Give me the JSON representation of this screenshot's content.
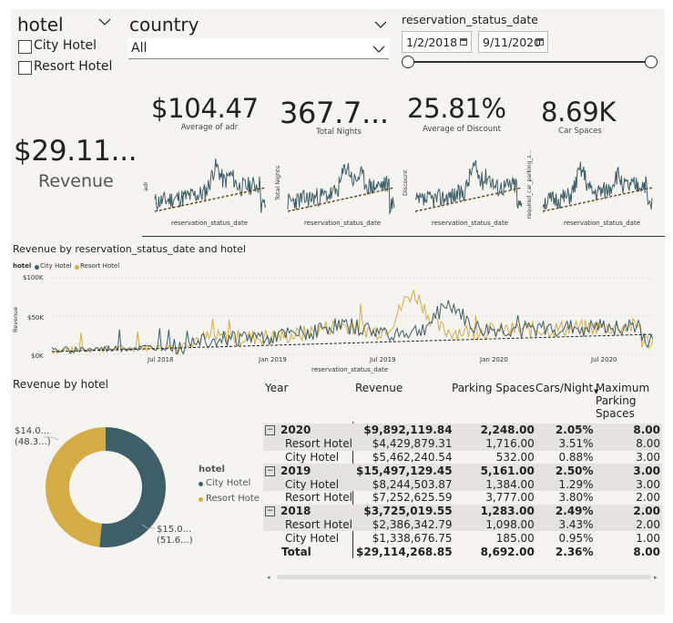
{
  "slicers": {
    "hotel": {
      "title": "hotel",
      "options": [
        {
          "label": "City Hotel",
          "checked": false
        },
        {
          "label": "Resort Hotel",
          "checked": false
        }
      ]
    },
    "country": {
      "title": "country",
      "value": "All"
    },
    "date": {
      "title": "reservation_status_date",
      "start": "1/2/2018",
      "end": "9/11/2020"
    }
  },
  "kpis": {
    "revenue": {
      "value": "$29.11...",
      "label": "Revenue"
    },
    "adr": {
      "value": "$104.47",
      "label": "Average of adr",
      "ylabel": "adr",
      "xlabel": "reservation_status_date"
    },
    "nights": {
      "value": "367.7...",
      "label": "Total Nights",
      "ylabel": "Total Nights",
      "xlabel": "reservation_status_date"
    },
    "discount": {
      "value": "25.81%",
      "label": "Average of Discount",
      "ylabel": "Discount",
      "xlabel": "reservation_status_date"
    },
    "parking": {
      "value": "8.69K",
      "label": "Car Spaces",
      "ylabel": "required_car_parking_s...",
      "xlabel": "reservation_status_date"
    }
  },
  "line_chart": {
    "title": "Revenue by reservation_status_date and hotel",
    "legend_title": "hotel",
    "series": [
      {
        "name": "City Hotel",
        "color": "#3f5f68"
      },
      {
        "name": "Resort Hotel",
        "color": "#d4ad47"
      }
    ],
    "yticks": [
      "$100K",
      "$50K",
      "$0K"
    ],
    "xticks": [
      "Jul 2018",
      "Jan 2019",
      "Jul 2019",
      "Jan 2020",
      "Jul 2020"
    ],
    "ylabel": "Revenue",
    "xlabel": "reservation_status_date"
  },
  "donut": {
    "title": "Revenue by hotel",
    "legend_title": "hotel",
    "slices": [
      {
        "name": "City Hotel",
        "value": 15045209.02,
        "label": "$15.0...",
        "pct": "(51.6...)",
        "color": "#3f5f68"
      },
      {
        "name": "Resort Hotel",
        "value": 14069059.83,
        "label": "$14.0...",
        "pct": "(48.3...)",
        "color": "#d4ad47"
      }
    ],
    "legend_labels": [
      "City Hotel",
      "Resort Hote"
    ]
  },
  "matrix": {
    "headers": [
      "Year",
      "Revenue",
      "Parking Spaces",
      "Cars/Night",
      "Maximum Parking Spaces"
    ],
    "rows": [
      {
        "label": "2020",
        "level": 0,
        "revenue": "$9,892,119.84",
        "parking": "2,248.00",
        "cars": "2.05%",
        "max": "8.00"
      },
      {
        "label": "Resort Hotel",
        "level": 1,
        "revenue": "$4,429,879.31",
        "parking": "1,716.00",
        "cars": "3.51%",
        "max": "8.00"
      },
      {
        "label": "City Hotel",
        "level": 1,
        "revenue": "$5,462,240.54",
        "parking": "532.00",
        "cars": "0.88%",
        "max": "3.00"
      },
      {
        "label": "2019",
        "level": 0,
        "revenue": "$15,497,129.45",
        "parking": "5,161.00",
        "cars": "2.50%",
        "max": "3.00"
      },
      {
        "label": "City Hotel",
        "level": 1,
        "revenue": "$8,244,503.87",
        "parking": "1,384.00",
        "cars": "1.29%",
        "max": "3.00"
      },
      {
        "label": "Resort Hotel",
        "level": 1,
        "revenue": "$7,252,625.59",
        "parking": "3,777.00",
        "cars": "3.80%",
        "max": "2.00"
      },
      {
        "label": "2018",
        "level": 0,
        "revenue": "$3,725,019.55",
        "parking": "1,283.00",
        "cars": "2.49%",
        "max": "2.00"
      },
      {
        "label": "Resort Hotel",
        "level": 1,
        "revenue": "$2,386,342.79",
        "parking": "1,098.00",
        "cars": "3.43%",
        "max": "2.00"
      },
      {
        "label": "City Hotel",
        "level": 1,
        "revenue": "$1,338,676.75",
        "parking": "185.00",
        "cars": "0.95%",
        "max": "1.00"
      },
      {
        "label": "Total",
        "level": 2,
        "revenue": "$29,114,268.85",
        "parking": "8,692.00",
        "cars": "2.36%",
        "max": "8.00"
      }
    ]
  }
}
